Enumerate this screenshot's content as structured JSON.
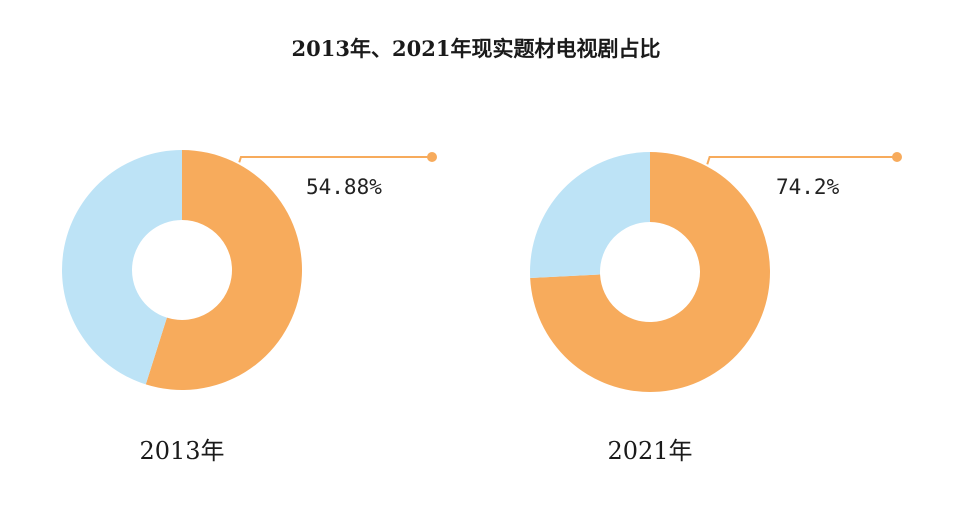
{
  "colors": {
    "primary": "#f7ab5c",
    "secondary": "#bde3f6",
    "background": "#ffffff"
  },
  "chart_data": {
    "title": "2013年、2021年现实题材电视剧占比",
    "charts": [
      {
        "type": "pie",
        "variant": "donut",
        "category": "2013年",
        "slices": [
          {
            "value": 54.88,
            "label": "54.88%",
            "color": "#f7ab5c"
          },
          {
            "value": 45.12,
            "color": "#bde3f6"
          }
        ]
      },
      {
        "type": "pie",
        "variant": "donut",
        "category": "2021年",
        "slices": [
          {
            "value": 74.2,
            "label": "74.2%",
            "color": "#f7ab5c"
          },
          {
            "value": 25.8,
            "color": "#bde3f6"
          }
        ]
      }
    ]
  }
}
